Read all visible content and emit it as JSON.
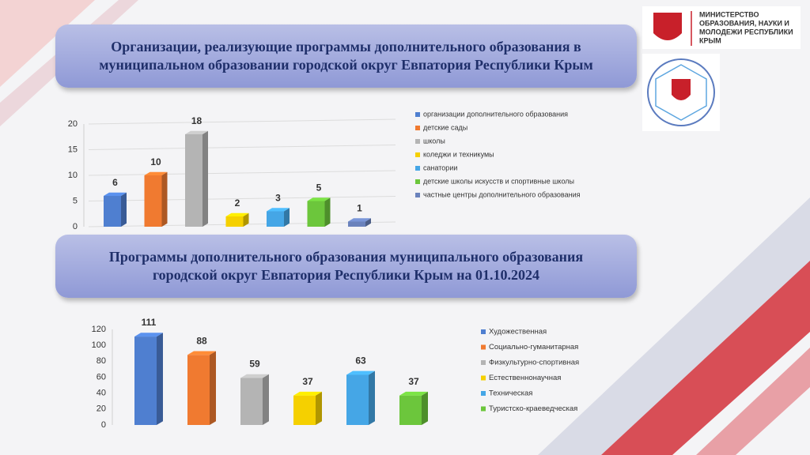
{
  "logo": {
    "lines": [
      "МИНИСТЕРСТВО",
      "ОБРАЗОВАНИЯ, НАУКИ И",
      "МОЛОДЕЖИ РЕСПУБЛИКИ",
      "КРЫМ"
    ]
  },
  "chart_data": [
    {
      "type": "bar",
      "title": "Организации, реализующие программы дополнительного  образования в муниципальном образовании городской округ Евпатория Республики Крым",
      "ylim": [
        0,
        20
      ],
      "yticks": [
        0,
        5,
        10,
        15,
        20
      ],
      "grid": true,
      "legend": "right",
      "series": [
        {
          "name": "организации дополнительного образования",
          "color": "#4f7fd0",
          "values": [
            6
          ]
        },
        {
          "name": "детские сады",
          "color": "#f07a30",
          "values": [
            10
          ]
        },
        {
          "name": "школы",
          "color": "#b4b4b4",
          "values": [
            18
          ]
        },
        {
          "name": "коледжи  и техникумы",
          "color": "#f5d000",
          "values": [
            2
          ]
        },
        {
          "name": "санатории",
          "color": "#45a6e6",
          "values": [
            3
          ]
        },
        {
          "name": "детские  школы  искусств и спортивные школы",
          "color": "#6cc63c",
          "values": [
            5
          ]
        },
        {
          "name": "частные центры  дополнительного  образования",
          "color": "#6a82bc",
          "values": [
            1
          ]
        }
      ]
    },
    {
      "type": "bar",
      "title": "Программы дополнительного  образования муниципального образования городской округ Евпатория Республики Крым на 01.10.2024",
      "ylim": [
        0,
        120
      ],
      "yticks": [
        0,
        20,
        40,
        60,
        80,
        100,
        120
      ],
      "grid": false,
      "legend": "right",
      "series": [
        {
          "name": "Художественная",
          "color": "#4f7fd0",
          "values": [
            111
          ]
        },
        {
          "name": "Социально-гуманитарная",
          "color": "#f07a30",
          "values": [
            88
          ]
        },
        {
          "name": "Физкультурно-спортивная",
          "color": "#b4b4b4",
          "values": [
            59
          ]
        },
        {
          "name": "Естественнонаучная",
          "color": "#f5d000",
          "values": [
            37
          ]
        },
        {
          "name": "Техническая",
          "color": "#45a6e6",
          "values": [
            63
          ]
        },
        {
          "name": "Туристско-краеведческая",
          "color": "#6cc63c",
          "values": [
            37
          ]
        }
      ]
    }
  ]
}
